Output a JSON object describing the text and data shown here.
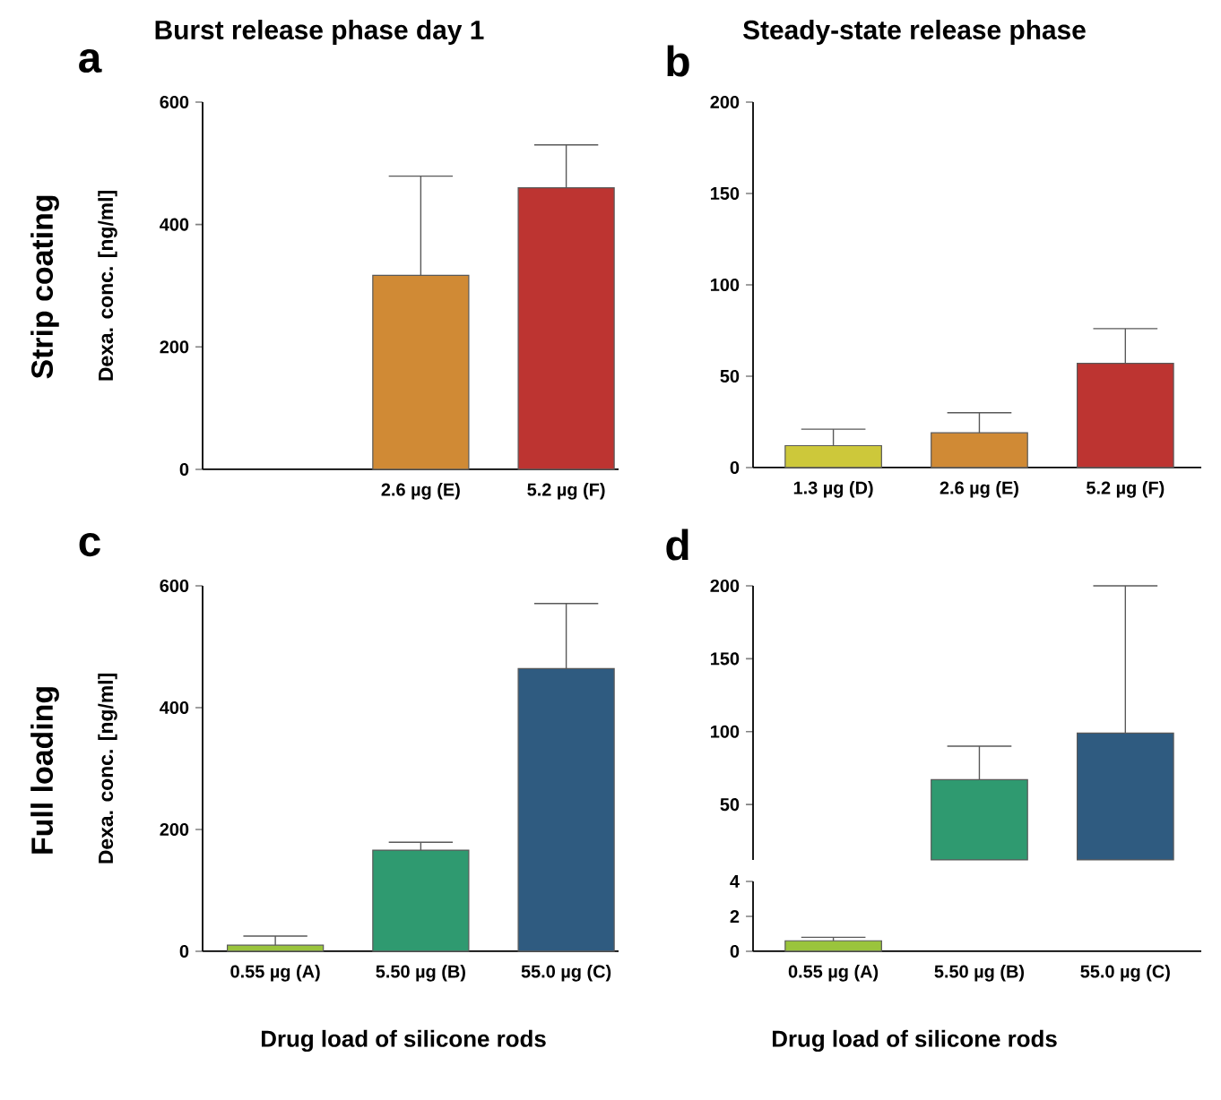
{
  "chart_data": [
    {
      "type": "bar",
      "title": "a",
      "ylabel": "Dexa. conc. [ng/ml]",
      "categories": [
        null,
        "2.6 µg (E)",
        "5.2 µg (F)"
      ],
      "values": [
        null,
        317,
        460
      ],
      "errors": [
        null,
        [
          317,
          479
        ],
        [
          460,
          530
        ]
      ],
      "colors": [
        "#9ac43c",
        "#d08a35",
        "#bd3431"
      ],
      "ylim": [
        0,
        600
      ],
      "yticks": [
        0,
        200,
        400,
        600
      ],
      "annotations": [
        "Burst release phase day 1",
        "Strip coating"
      ]
    },
    {
      "type": "bar",
      "title": "b",
      "categories": [
        "1.3 µg (D)",
        "2.6 µg (E)",
        "5.2 µg (F)"
      ],
      "values": [
        12,
        19,
        57
      ],
      "errors": [
        [
          12,
          21
        ],
        [
          19,
          30
        ],
        [
          57,
          76
        ]
      ],
      "colors": [
        "#cdc83a",
        "#d08a35",
        "#bd3431"
      ],
      "ylim": [
        0,
        200
      ],
      "yticks": [
        0,
        50,
        100,
        150,
        200
      ],
      "annotations": [
        "Steady-state release phase"
      ]
    },
    {
      "type": "bar",
      "title": "c",
      "ylabel": "Dexa. conc. [ng/ml]",
      "xlabel": "Drug load of silicone rods",
      "categories": [
        "0.55 µg (A)",
        "5.50 µg (B)",
        "55.0 µg (C)"
      ],
      "values": [
        10,
        166,
        464
      ],
      "errors": [
        [
          10,
          25
        ],
        [
          166,
          179
        ],
        [
          464,
          571
        ]
      ],
      "colors": [
        "#9ac43c",
        "#2f9a70",
        "#2f5b80"
      ],
      "ylim": [
        0,
        600
      ],
      "yticks": [
        0,
        200,
        400,
        600
      ],
      "annotations": [
        "Full loading"
      ]
    },
    {
      "type": "bar",
      "title": "d",
      "categories": [
        null,
        null,
        null
      ],
      "values": [
        null,
        67,
        99
      ],
      "errors": [
        null,
        [
          67,
          90
        ],
        [
          99,
          200
        ]
      ],
      "colors": [
        "#9ac43c",
        "#2f9a70",
        "#2f5b80"
      ],
      "ylim": [
        12,
        200
      ],
      "yticks": [
        50,
        100,
        150,
        200
      ],
      "tick_labels": "y"
    },
    {
      "type": "bar",
      "xlabel": "Drug load of silicone rods",
      "categories": [
        "0.55 µg (A)",
        "5.50 µg (B)",
        "55.0 µg (C)"
      ],
      "values": [
        0.6,
        null,
        null
      ],
      "errors": [
        [
          0.6,
          0.8
        ],
        null,
        null
      ],
      "colors": [
        "#9ac43c",
        "#2f9a70",
        "#2f5b80"
      ],
      "ylim": [
        0,
        4
      ],
      "yticks": [
        0,
        2,
        4
      ]
    }
  ]
}
